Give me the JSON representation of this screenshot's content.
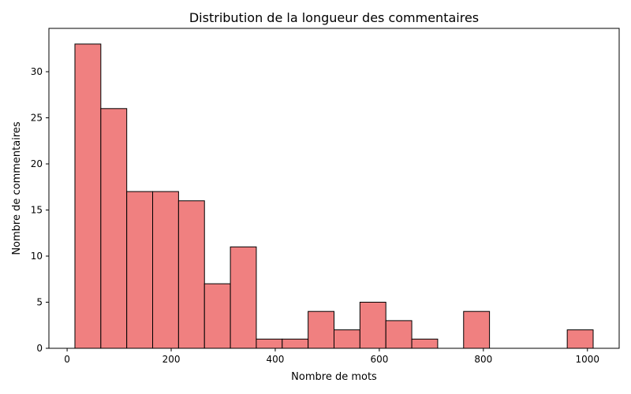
{
  "chart_data": {
    "type": "bar",
    "title": "Distribution de la longueur des commentaires",
    "xlabel": "Nombre de mots",
    "ylabel": "Nombre de commentaires",
    "bins": {
      "edges": [
        15,
        64.8,
        114.6,
        164.4,
        214.2,
        264,
        313.8,
        363.6,
        413.4,
        463.2,
        513,
        562.8,
        612.6,
        662.4,
        712.2,
        762,
        811.8,
        861.6,
        911.4,
        961.2,
        1011
      ],
      "counts": [
        33,
        26,
        17,
        17,
        16,
        7,
        11,
        1,
        1,
        4,
        2,
        5,
        3,
        1,
        0,
        4,
        0,
        0,
        0,
        2
      ]
    },
    "xlim": [
      -35,
      1061
    ],
    "ylim": [
      0,
      34.7
    ],
    "xticks": [
      0,
      200,
      400,
      600,
      800,
      1000
    ],
    "yticks": [
      0,
      5,
      10,
      15,
      20,
      25,
      30
    ],
    "grid": false,
    "colors": {
      "bar_fill": "#F08080",
      "bar_edge": "#000000"
    }
  }
}
